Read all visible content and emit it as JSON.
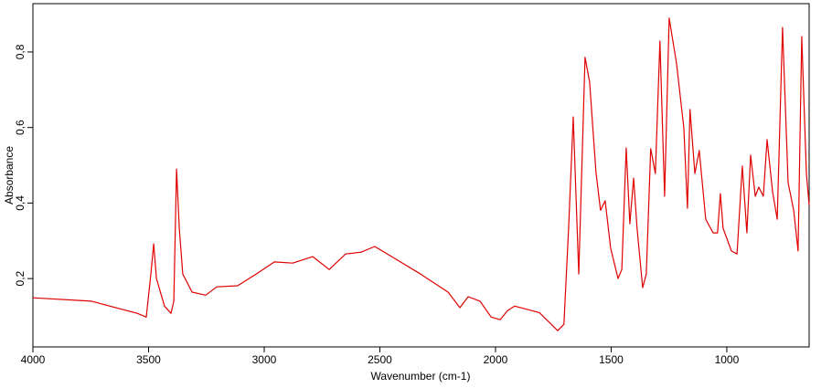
{
  "chart_data": {
    "type": "line",
    "xlabel": "Wavenumber (cm-1)",
    "ylabel": "Absorbance",
    "x": [
      4000,
      3747,
      3549,
      3510,
      3490,
      3478,
      3466,
      3431,
      3403,
      3391,
      3379,
      3367,
      3352,
      3312,
      3253,
      3205,
      3115,
      3035,
      2956,
      2877,
      2790,
      2719,
      2648,
      2581,
      2522,
      2443,
      2324,
      2205,
      2154,
      2118,
      2067,
      2019,
      1980,
      1948,
      1917,
      1810,
      1759,
      1731,
      1704,
      1684,
      1664,
      1640,
      1613,
      1593,
      1566,
      1546,
      1526,
      1502,
      1470,
      1454,
      1435,
      1419,
      1403,
      1388,
      1364,
      1348,
      1329,
      1309,
      1289,
      1269,
      1249,
      1217,
      1186,
      1170,
      1159,
      1138,
      1119,
      1091,
      1059,
      1040,
      1028,
      1016,
      980,
      956,
      933,
      913,
      897,
      877,
      862,
      842,
      826,
      802,
      782,
      759,
      735,
      711,
      692,
      676,
      656,
      644
    ],
    "values": [
      0.149,
      0.14,
      0.108,
      0.098,
      0.212,
      0.292,
      0.2,
      0.127,
      0.108,
      0.14,
      0.49,
      0.333,
      0.212,
      0.164,
      0.156,
      0.178,
      0.181,
      0.212,
      0.244,
      0.241,
      0.258,
      0.224,
      0.265,
      0.27,
      0.285,
      0.256,
      0.212,
      0.164,
      0.123,
      0.152,
      0.14,
      0.098,
      0.091,
      0.115,
      0.127,
      0.11,
      0.079,
      0.062,
      0.079,
      0.333,
      0.628,
      0.212,
      0.786,
      0.72,
      0.483,
      0.381,
      0.406,
      0.28,
      0.2,
      0.224,
      0.546,
      0.345,
      0.466,
      0.333,
      0.176,
      0.212,
      0.544,
      0.478,
      0.829,
      0.418,
      0.89,
      0.769,
      0.6,
      0.386,
      0.648,
      0.478,
      0.539,
      0.357,
      0.321,
      0.321,
      0.425,
      0.333,
      0.273,
      0.265,
      0.498,
      0.321,
      0.527,
      0.418,
      0.442,
      0.418,
      0.568,
      0.43,
      0.357,
      0.865,
      0.454,
      0.381,
      0.273,
      0.841,
      0.478,
      0.394
    ],
    "color": "#e00000",
    "xlim": [
      4000,
      644
    ],
    "ylim": [
      0.019,
      0.928
    ],
    "xticks": [
      4000,
      3500,
      3000,
      2500,
      2000,
      1500,
      1000
    ],
    "yticks": [
      {
        "value": 0.2,
        "label": "0,2"
      },
      {
        "value": 0.4,
        "label": "0,4"
      },
      {
        "value": 0.6,
        "label": "0,6"
      },
      {
        "value": 0.8,
        "label": "0,8"
      }
    ]
  }
}
